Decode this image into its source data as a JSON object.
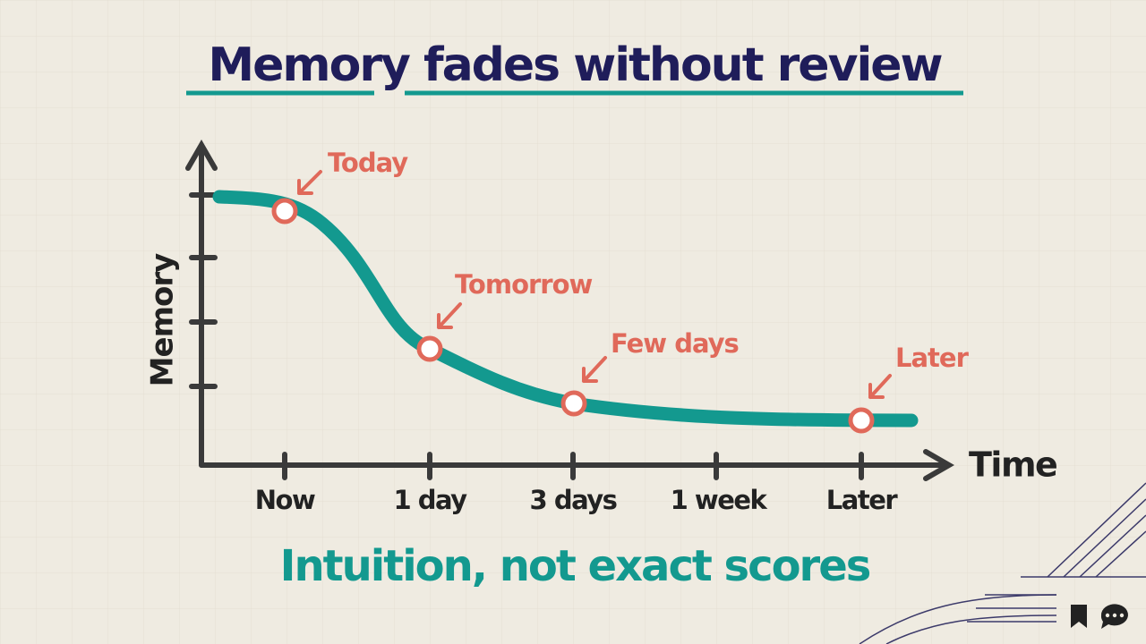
{
  "title": "Memory fades without review",
  "y_axis_label": "Memory",
  "x_axis_label": "Time",
  "x_labels": [
    "Now",
    "1 day",
    "3 days",
    "1 week",
    "Later"
  ],
  "annotations": [
    "Today",
    "Tomorrow",
    "Few days",
    "Later"
  ],
  "subtitle": "Intuition, not exact scores"
}
